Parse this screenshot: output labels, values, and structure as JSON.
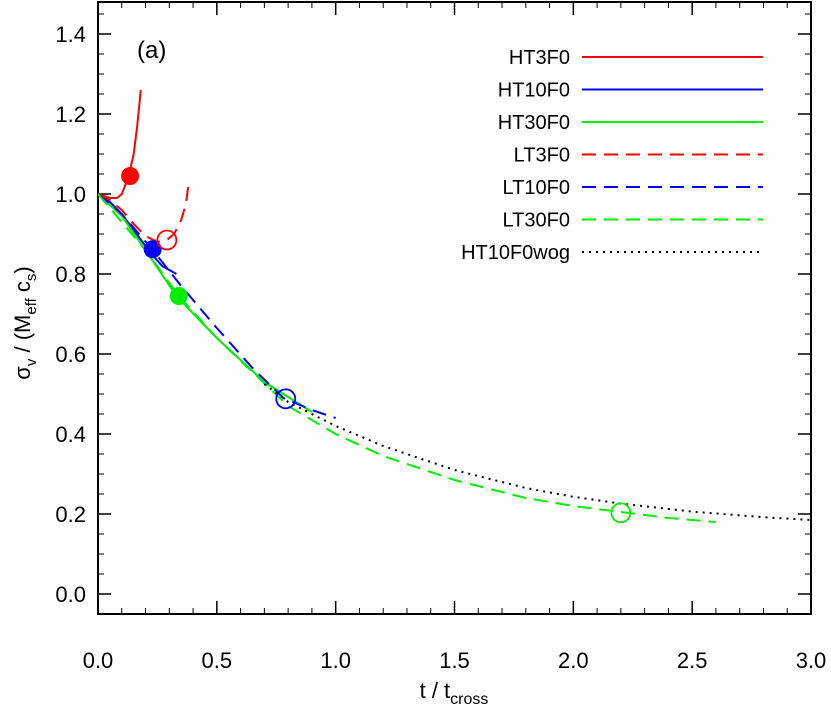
{
  "chart_data": {
    "type": "line",
    "panel_label": "(a)",
    "xlabel": {
      "main": "t / t",
      "sub": "cross"
    },
    "ylabel": {
      "sigma": "σ",
      "v_sub": "v",
      "mid": " / (M",
      "eff_sub": "eff",
      "c": " c",
      "s_sub": "s",
      "end": ")"
    },
    "xlim": [
      0,
      3
    ],
    "ylim": [
      -0.05,
      1.48
    ],
    "x_ticks": [
      0.0,
      0.5,
      1.0,
      1.5,
      2.0,
      2.5,
      3.0
    ],
    "x_tick_labels": [
      "0.0",
      "0.5",
      "1.0",
      "1.5",
      "2.0",
      "2.5",
      "3.0"
    ],
    "y_ticks": [
      0.0,
      0.2,
      0.4,
      0.6,
      0.8,
      1.0,
      1.2,
      1.4
    ],
    "y_tick_labels": [
      "0.0",
      "0.2",
      "0.4",
      "0.6",
      "0.8",
      "1.0",
      "1.2",
      "1.4"
    ],
    "legend_position": "top-right",
    "series": [
      {
        "name": "HT3F0",
        "color": "#ff0000",
        "dash": "solid",
        "x": [
          0,
          0.05,
          0.08,
          0.1,
          0.12,
          0.135,
          0.15,
          0.165,
          0.18
        ],
        "y": [
          1.0,
          0.99,
          0.99,
          1.0,
          1.03,
          1.06,
          1.1,
          1.17,
          1.26
        ],
        "marker": {
          "x": 0.135,
          "y": 1.045,
          "filled": true
        }
      },
      {
        "name": "HT10F0",
        "color": "#0000ff",
        "dash": "solid",
        "x": [
          0,
          0.05,
          0.1,
          0.15,
          0.2,
          0.24,
          0.27,
          0.3,
          0.33
        ],
        "y": [
          1.0,
          0.98,
          0.95,
          0.91,
          0.87,
          0.84,
          0.82,
          0.81,
          0.8
        ],
        "marker": {
          "x": 0.23,
          "y": 0.862,
          "filled": true
        }
      },
      {
        "name": "HT30F0",
        "color": "#00ee00",
        "dash": "solid",
        "x": [
          0,
          0.1,
          0.2,
          0.33,
          0.5,
          0.7,
          0.9
        ],
        "y": [
          1.0,
          0.945,
          0.86,
          0.745,
          0.64,
          0.53,
          0.455
        ],
        "marker": {
          "x": 0.34,
          "y": 0.745,
          "filled": true
        }
      },
      {
        "name": "LT3F0",
        "color": "#ff0000",
        "dash": "dashed",
        "x": [
          0,
          0.05,
          0.1,
          0.15,
          0.2,
          0.25,
          0.29,
          0.32,
          0.35,
          0.37,
          0.38
        ],
        "y": [
          1.0,
          0.985,
          0.96,
          0.925,
          0.895,
          0.88,
          0.885,
          0.9,
          0.935,
          0.975,
          1.02
        ],
        "marker": {
          "x": 0.29,
          "y": 0.885,
          "filled": false
        }
      },
      {
        "name": "LT10F0",
        "color": "#0000ff",
        "dash": "dashed",
        "x": [
          0,
          0.1,
          0.23,
          0.35,
          0.5,
          0.65,
          0.78,
          0.9,
          1.0
        ],
        "y": [
          1.0,
          0.95,
          0.86,
          0.77,
          0.665,
          0.565,
          0.49,
          0.46,
          0.44
        ],
        "marker": {
          "x": 0.79,
          "y": 0.488,
          "filled": false
        }
      },
      {
        "name": "LT30F0",
        "color": "#00ee00",
        "dash": "dashed",
        "x": [
          0,
          0.2,
          0.34,
          0.5,
          0.8,
          1.0,
          1.2,
          1.5,
          1.8,
          2.0,
          2.2,
          2.4,
          2.6
        ],
        "y": [
          1.0,
          0.86,
          0.745,
          0.64,
          0.47,
          0.4,
          0.345,
          0.285,
          0.24,
          0.22,
          0.205,
          0.19,
          0.18
        ],
        "marker": {
          "x": 2.2,
          "y": 0.203,
          "filled": false
        }
      },
      {
        "name": "HT10F0wog",
        "color": "#000000",
        "dash": "dotted",
        "x": [
          0.7,
          0.8,
          1.0,
          1.2,
          1.5,
          1.8,
          2.0,
          2.2,
          2.5,
          2.8,
          3.0
        ],
        "y": [
          0.525,
          0.48,
          0.42,
          0.37,
          0.31,
          0.265,
          0.243,
          0.226,
          0.206,
          0.192,
          0.185
        ],
        "marker": null
      }
    ]
  }
}
